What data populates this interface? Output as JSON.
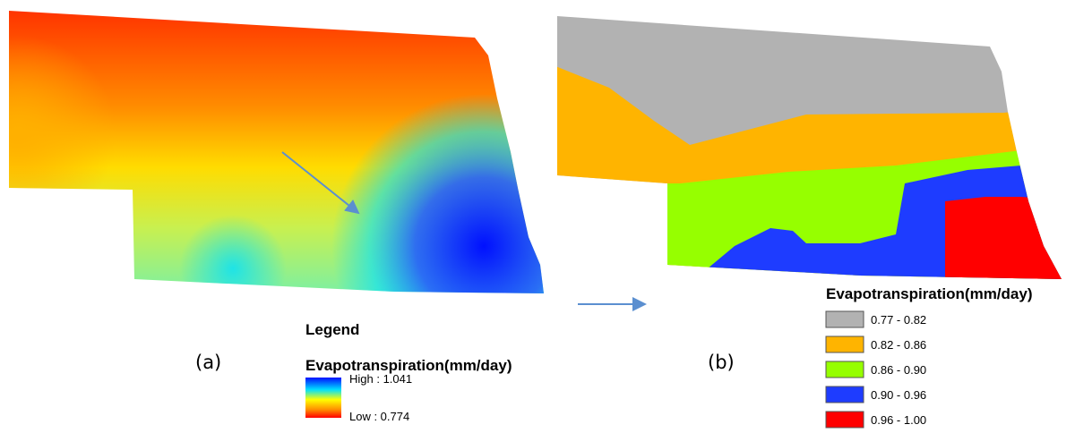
{
  "panel_a": {
    "label": "(a)",
    "legend": {
      "title": "Legend",
      "subtitle": "Evapotranspiration(mm/day)",
      "high": "High : 1.041",
      "low": "Low : 0.774"
    }
  },
  "panel_b": {
    "label": "(b)",
    "legend": {
      "title": "Evapotranspiration(mm/day)",
      "classes": [
        {
          "label": "0.77 - 0.82",
          "color": "#b2b2b2"
        },
        {
          "label": "0.82 - 0.86",
          "color": "#ffb400"
        },
        {
          "label": "0.86 - 0.90",
          "color": "#96ff00"
        },
        {
          "label": "0.90 - 0.96",
          "color": "#1e3cff"
        },
        {
          "label": "0.96 - 1.00",
          "color": "#ff0000"
        }
      ]
    }
  }
}
